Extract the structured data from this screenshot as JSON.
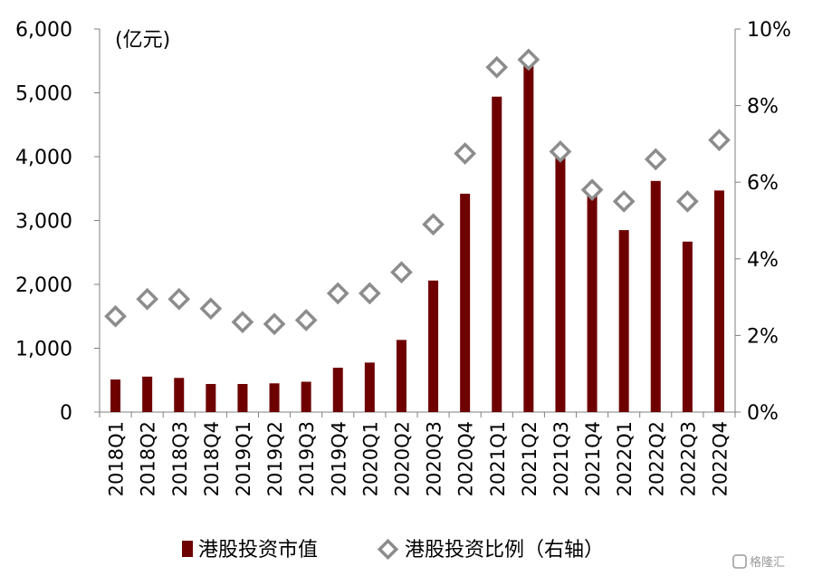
{
  "chart_data": {
    "type": "bar",
    "unit_label": "(亿元)",
    "categories": [
      "2018Q1",
      "2018Q2",
      "2018Q3",
      "2018Q4",
      "2019Q1",
      "2019Q2",
      "2019Q3",
      "2019Q4",
      "2020Q1",
      "2020Q2",
      "2020Q3",
      "2020Q4",
      "2021Q1",
      "2021Q2",
      "2021Q3",
      "2021Q4",
      "2022Q1",
      "2022Q2",
      "2022Q3",
      "2022Q4"
    ],
    "series": [
      {
        "name": "港股投资市值",
        "type": "bar",
        "axis": "left",
        "color": "#6e0000",
        "values": [
          510,
          555,
          535,
          440,
          440,
          450,
          475,
          695,
          775,
          1130,
          2060,
          3420,
          4940,
          5440,
          4020,
          3450,
          2850,
          3620,
          2670,
          3470
        ]
      },
      {
        "name": "港股投资比例（右轴）",
        "type": "scatter",
        "axis": "right",
        "marker": "diamond",
        "color": "#8c8c8c",
        "values": [
          2.5,
          2.95,
          2.95,
          2.7,
          2.35,
          2.3,
          2.4,
          3.1,
          3.1,
          3.65,
          4.9,
          6.75,
          9.0,
          9.2,
          6.8,
          5.8,
          5.5,
          6.6,
          5.5,
          7.1
        ]
      }
    ],
    "y_left": {
      "min": 0,
      "max": 6000,
      "ticks": [
        "0",
        "1,000",
        "2,000",
        "3,000",
        "4,000",
        "5,000",
        "6,000"
      ]
    },
    "y_right": {
      "min": 0,
      "max": 10,
      "ticks": [
        "0%",
        "2%",
        "4%",
        "6%",
        "8%",
        "10%"
      ]
    },
    "grid": false,
    "legend_position": "bottom"
  },
  "watermark": "格隆汇"
}
